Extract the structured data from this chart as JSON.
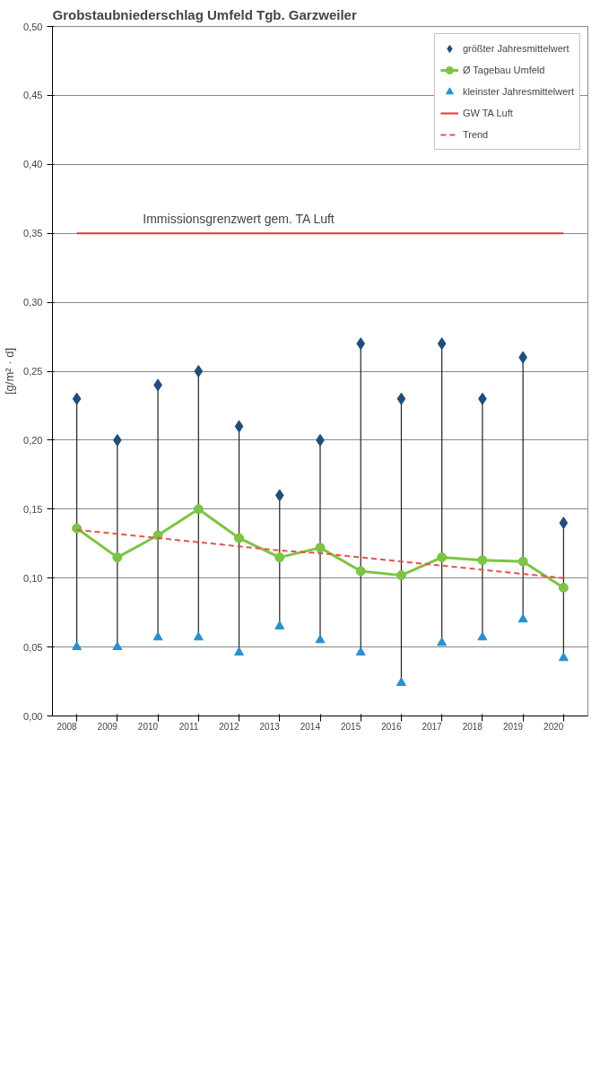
{
  "chart_data": {
    "type": "line",
    "title": "Grobstaubniederschlag Umfeld Tgb. Garzweiler",
    "ylabel": "[g/m² · d]",
    "categories": [
      "2008",
      "2009",
      "2010",
      "2011",
      "2012",
      "2013",
      "2014",
      "2015",
      "2016",
      "2017",
      "2018",
      "2019",
      "2020"
    ],
    "ylim": [
      0,
      0.5
    ],
    "yticks": [
      {
        "value": 0,
        "label": "0,00"
      },
      {
        "value": 0.05,
        "label": "0,05"
      },
      {
        "value": 0.1,
        "label": "0,10"
      },
      {
        "value": 0.15,
        "label": "0,15"
      },
      {
        "value": 0.2,
        "label": "0,20"
      },
      {
        "value": 0.25,
        "label": "0,25"
      },
      {
        "value": 0.3,
        "label": "0,30"
      },
      {
        "value": 0.35,
        "label": "0,35"
      },
      {
        "value": 0.4,
        "label": "0,40"
      },
      {
        "value": 0.45,
        "label": "0,45"
      },
      {
        "value": 0.5,
        "label": "0,50"
      }
    ],
    "grid": "y",
    "legend": "top right",
    "series": [
      {
        "name": "größter Jahresmittelwert",
        "type": "scatter",
        "marker": "diamond",
        "color": "#1f4e79",
        "values": [
          0.23,
          0.2,
          0.24,
          0.25,
          0.21,
          0.16,
          0.2,
          0.27,
          0.23,
          0.27,
          0.23,
          0.26,
          0.14
        ]
      },
      {
        "name": "Ø Tagebau Umfeld",
        "marker": "circle",
        "line_style": "solid",
        "color": "#7cc444",
        "values": [
          0.136,
          0.115,
          0.131,
          0.15,
          0.129,
          0.115,
          0.122,
          0.105,
          0.102,
          0.115,
          0.113,
          0.112,
          0.093
        ]
      },
      {
        "name": "kleinster Jahresmittelwert",
        "type": "scatter",
        "marker": "triangle",
        "color": "#2a8fd0",
        "values": [
          0.05,
          0.05,
          0.057,
          0.057,
          0.046,
          0.065,
          0.055,
          0.046,
          0.024,
          0.053,
          0.057,
          0.07,
          0.042
        ]
      },
      {
        "name": "Trend",
        "type": "line",
        "marker": "none",
        "line_style": "dashed",
        "color": "#e8504a",
        "values": [
          0.135,
          0.132,
          0.129,
          0.126,
          0.123,
          0.12,
          0.118,
          0.115,
          0.112,
          0.109,
          0.106,
          0.103,
          0.1
        ]
      }
    ],
    "ref_lines": [
      {
        "axis": "y",
        "value": 0.35,
        "label": "GW TA Luft",
        "color": "#e53935"
      }
    ],
    "annotations": [
      {
        "text": "Immissionsgrenzwert gem. TA Luft",
        "x": "2012",
        "y": 0.35
      }
    ]
  }
}
